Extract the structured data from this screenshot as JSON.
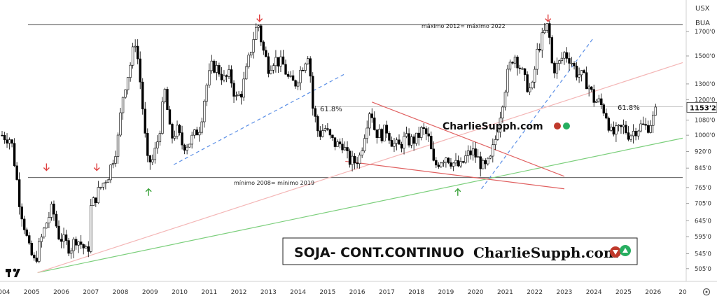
{
  "chart_data": {
    "type": "candlestick",
    "title": "",
    "symbol": "USX",
    "currency": "BUA",
    "last_price": 1153.2,
    "last_price_label": "1153'2",
    "y_scale": "log",
    "ylim": [
      480,
      1900
    ],
    "xlim": [
      2004.0,
      2027.0
    ],
    "grid": false,
    "y_ticks": [
      {
        "value": 1700,
        "label": "1700'0"
      },
      {
        "value": 1500,
        "label": "1500'0"
      },
      {
        "value": 1300,
        "label": "1300'0"
      },
      {
        "value": 1200,
        "label": "1200'0"
      },
      {
        "value": 1080,
        "label": "1080'0"
      },
      {
        "value": 1000,
        "label": "1000'0"
      },
      {
        "value": 920,
        "label": "920'0"
      },
      {
        "value": 845,
        "label": "845'0"
      },
      {
        "value": 765,
        "label": "765'0"
      },
      {
        "value": 705,
        "label": "705'0"
      },
      {
        "value": 645,
        "label": "645'0"
      },
      {
        "value": 595,
        "label": "595'0"
      },
      {
        "value": 545,
        "label": "545'0"
      },
      {
        "value": 505,
        "label": "505'0"
      }
    ],
    "x_ticks": [
      "2004",
      "2005",
      "2006",
      "2007",
      "2008",
      "2009",
      "2010",
      "2011",
      "2012",
      "2013",
      "2014",
      "2015",
      "2016",
      "2017",
      "2018",
      "2019",
      "2020",
      "2021",
      "2022",
      "2023",
      "2024",
      "2025",
      "2026",
      "20"
    ],
    "price_series": [
      [
        2004.0,
        1000
      ],
      [
        2004.3,
        980
      ],
      [
        2004.6,
        700
      ],
      [
        2004.9,
        560
      ],
      [
        2005.1,
        520
      ],
      [
        2005.3,
        580
      ],
      [
        2005.5,
        640
      ],
      [
        2005.7,
        690
      ],
      [
        2005.9,
        600
      ],
      [
        2006.1,
        580
      ],
      [
        2006.3,
        560
      ],
      [
        2006.5,
        590
      ],
      [
        2006.7,
        570
      ],
      [
        2006.9,
        540
      ],
      [
        2007.0,
        690
      ],
      [
        2007.3,
        760
      ],
      [
        2007.6,
        820
      ],
      [
        2007.9,
        960
      ],
      [
        2008.1,
        1250
      ],
      [
        2008.3,
        1400
      ],
      [
        2008.5,
        1620
      ],
      [
        2008.6,
        1450
      ],
      [
        2008.8,
        1050
      ],
      [
        2008.9,
        870
      ],
      [
        2009.1,
        880
      ],
      [
        2009.3,
        1000
      ],
      [
        2009.5,
        1250
      ],
      [
        2009.7,
        980
      ],
      [
        2009.9,
        1030
      ],
      [
        2010.1,
        950
      ],
      [
        2010.3,
        960
      ],
      [
        2010.5,
        1000
      ],
      [
        2010.7,
        1050
      ],
      [
        2010.9,
        1280
      ],
      [
        2011.1,
        1430
      ],
      [
        2011.3,
        1400
      ],
      [
        2011.5,
        1330
      ],
      [
        2011.7,
        1360
      ],
      [
        2011.9,
        1200
      ],
      [
        2012.1,
        1250
      ],
      [
        2012.3,
        1430
      ],
      [
        2012.5,
        1650
      ],
      [
        2012.65,
        1780
      ],
      [
        2012.8,
        1560
      ],
      [
        2013.0,
        1420
      ],
      [
        2013.2,
        1480
      ],
      [
        2013.5,
        1430
      ],
      [
        2013.7,
        1320
      ],
      [
        2013.9,
        1300
      ],
      [
        2014.1,
        1400
      ],
      [
        2014.35,
        1530
      ],
      [
        2014.5,
        1150
      ],
      [
        2014.7,
        1000
      ],
      [
        2014.9,
        1040
      ],
      [
        2015.1,
        980
      ],
      [
        2015.3,
        950
      ],
      [
        2015.5,
        960
      ],
      [
        2015.7,
        880
      ],
      [
        2015.9,
        870
      ],
      [
        2016.1,
        900
      ],
      [
        2016.3,
        1050
      ],
      [
        2016.45,
        1160
      ],
      [
        2016.6,
        1020
      ],
      [
        2016.8,
        1000
      ],
      [
        2017.0,
        1030
      ],
      [
        2017.2,
        960
      ],
      [
        2017.4,
        940
      ],
      [
        2017.6,
        980
      ],
      [
        2017.8,
        970
      ],
      [
        2018.0,
        980
      ],
      [
        2018.2,
        1030
      ],
      [
        2018.4,
        990
      ],
      [
        2018.6,
        850
      ],
      [
        2018.8,
        880
      ],
      [
        2019.0,
        900
      ],
      [
        2019.3,
        860
      ],
      [
        2019.5,
        850
      ],
      [
        2019.7,
        900
      ],
      [
        2019.9,
        920
      ],
      [
        2020.1,
        880
      ],
      [
        2020.3,
        840
      ],
      [
        2020.5,
        880
      ],
      [
        2020.7,
        1000
      ],
      [
        2020.9,
        1180
      ],
      [
        2021.1,
        1380
      ],
      [
        2021.3,
        1520
      ],
      [
        2021.5,
        1420
      ],
      [
        2021.7,
        1300
      ],
      [
        2021.9,
        1250
      ],
      [
        2022.1,
        1550
      ],
      [
        2022.3,
        1670
      ],
      [
        2022.45,
        1760
      ],
      [
        2022.6,
        1400
      ],
      [
        2022.8,
        1430
      ],
      [
        2023.0,
        1520
      ],
      [
        2023.2,
        1480
      ],
      [
        2023.4,
        1380
      ],
      [
        2023.6,
        1350
      ],
      [
        2023.8,
        1300
      ],
      [
        2024.0,
        1200
      ],
      [
        2024.2,
        1180
      ],
      [
        2024.4,
        1120
      ],
      [
        2024.6,
        1000
      ],
      [
        2024.8,
        1020
      ],
      [
        2025.0,
        1040
      ],
      [
        2025.2,
        1000
      ],
      [
        2025.4,
        1030
      ],
      [
        2025.6,
        1050
      ],
      [
        2025.8,
        1040
      ],
      [
        2026.0,
        1090
      ],
      [
        2026.15,
        1153.2
      ]
    ],
    "lines": [
      {
        "kind": "horizontal",
        "value": 1760,
        "color": "#444444",
        "label": "máximo 2012= máximo 2022"
      },
      {
        "kind": "horizontal",
        "value": 805,
        "color": "#444444",
        "label": "mínimo 2008= mínimo 2019"
      },
      {
        "kind": "horizontal",
        "value": 1157,
        "color": "#bbbbbb",
        "label": "61.8%"
      },
      {
        "kind": "trend",
        "points": [
          [
            2005.2,
            495
          ],
          [
            2027.0,
            985
          ]
        ],
        "color": "#7ccf7c",
        "style": "solid"
      },
      {
        "kind": "trend",
        "points": [
          [
            2005.2,
            495
          ],
          [
            2027.0,
            1450
          ]
        ],
        "color": "#f4b6b6",
        "style": "solid"
      },
      {
        "kind": "trend",
        "points": [
          [
            2009.8,
            860
          ],
          [
            2015.6,
            1370
          ]
        ],
        "color": "#5b8fe6",
        "style": "dashed"
      },
      {
        "kind": "trend",
        "points": [
          [
            2020.2,
            760
          ],
          [
            2024.0,
            1650
          ]
        ],
        "color": "#5b8fe6",
        "style": "dashed"
      },
      {
        "kind": "trend",
        "points": [
          [
            2016.5,
            1185
          ],
          [
            2023.0,
            810
          ]
        ],
        "color": "#e06060",
        "style": "solid"
      },
      {
        "kind": "trend",
        "points": [
          [
            2015.6,
            875
          ],
          [
            2023.0,
            760
          ]
        ],
        "color": "#e06060",
        "style": "solid"
      }
    ],
    "arrows": [
      {
        "x": 2012.7,
        "at": 1790,
        "dir": "down",
        "color": "#e04040"
      },
      {
        "x": 2022.45,
        "at": 1790,
        "dir": "down",
        "color": "#e04040"
      },
      {
        "x": 2005.5,
        "at": 835,
        "dir": "down",
        "color": "#e04040"
      },
      {
        "x": 2007.2,
        "at": 835,
        "dir": "down",
        "color": "#e04040"
      },
      {
        "x": 2008.95,
        "at": 760,
        "dir": "up",
        "color": "#3aa23a"
      },
      {
        "x": 2019.4,
        "at": 760,
        "dir": "up",
        "color": "#3aa23a"
      }
    ],
    "annotations": {
      "fib_left": "61.8%",
      "fib_right": "61.8%",
      "max_label": "máximo 2012= máximo 2022",
      "min_label": "mínimo 2008= mínimo 2019",
      "watermark": "CharlieSupph.com",
      "banner_title": "SOJA- CONT.CONTINUO",
      "banner_brand": "CharlieSupph.com"
    },
    "colors": {
      "up": "#ffffff",
      "down": "#000000",
      "outline": "#000000"
    }
  }
}
